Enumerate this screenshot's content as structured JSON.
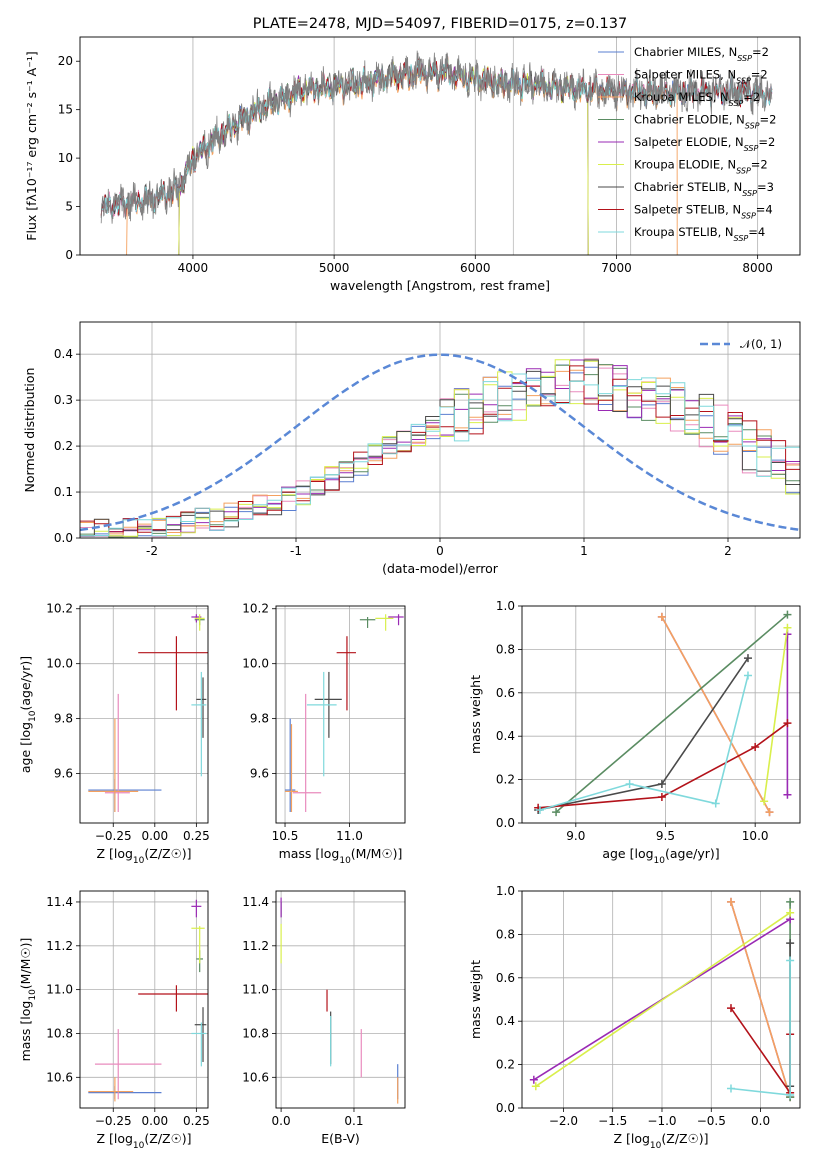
{
  "page_title": "PLATE=2478, MJD=54097, FIBERID=0175, z=0.137",
  "colors": {
    "c_miles": "#5a7fd1",
    "s_miles": "#e98bbd",
    "k_miles": "#f4a15f",
    "c_elodie": "#5a8c62",
    "s_elodie": "#9a2ab4",
    "k_elodie": "#d9ef4c",
    "c_stelib": "#4a4a4a",
    "s_stelib": "#b3121a",
    "k_stelib": "#7fd9dc"
  },
  "chart_data": [
    {
      "id": "spectrum",
      "type": "line",
      "title": "PLATE=2478, MJD=54097, FIBERID=0175, z=0.137",
      "xlabel": "wavelength [Angstrom, rest frame]",
      "ylabel": "Flux [fλ10⁻¹⁷ erg cm⁻² s⁻¹ A⁻¹]",
      "xlim": [
        3200,
        8300
      ],
      "ylim": [
        0,
        22.5
      ],
      "xticks": [
        4000,
        5000,
        6000,
        7000,
        8000
      ],
      "yticks": [
        0,
        5,
        10,
        15,
        20
      ],
      "grid": "x",
      "legend": "top-right",
      "observed_color": "#808080",
      "series": [
        {
          "key": "c_miles",
          "name": "Chabrier MILES, N",
          "sub": "SSP",
          "tail": "=2"
        },
        {
          "key": "s_miles",
          "name": "Salpeter MILES, N",
          "sub": "SSP",
          "tail": "=2"
        },
        {
          "key": "k_miles",
          "name": "Kroupa MILES, N",
          "sub": "SSP",
          "tail": "=2"
        },
        {
          "key": "c_elodie",
          "name": "Chabrier ELODIE, N",
          "sub": "SSP",
          "tail": "=2"
        },
        {
          "key": "s_elodie",
          "name": "Salpeter ELODIE, N",
          "sub": "SSP",
          "tail": "=2"
        },
        {
          "key": "k_elodie",
          "name": "Kroupa ELODIE, N",
          "sub": "SSP",
          "tail": "=2"
        },
        {
          "key": "c_stelib",
          "name": "Chabrier STELIB, N",
          "sub": "SSP",
          "tail": "=3"
        },
        {
          "key": "s_stelib",
          "name": "Salpeter STELIB, N",
          "sub": "SSP",
          "tail": "=4"
        },
        {
          "key": "k_stelib",
          "name": "Kroupa STELIB, N",
          "sub": "SSP",
          "tail": "=4"
        }
      ],
      "continuum": {
        "x": [
          3350,
          3500,
          3700,
          3900,
          4000,
          4200,
          4400,
          4600,
          4800,
          5000,
          5200,
          5400,
          5600,
          5800,
          6000,
          6200,
          6400,
          6600,
          6800,
          7000,
          7200,
          7400,
          7600,
          7800,
          8000,
          8100
        ],
        "y": [
          5.0,
          5.3,
          5.8,
          6.8,
          10.0,
          12.5,
          14.5,
          16.0,
          17.2,
          17.3,
          17.8,
          18.4,
          18.9,
          18.8,
          18.2,
          17.8,
          17.7,
          17.3,
          17.0,
          16.9,
          16.9,
          16.8,
          16.9,
          16.9,
          16.8,
          16.5
        ]
      },
      "models_range": [
        3350,
        8100
      ],
      "miles_orange_range": [
        3530,
        7430
      ],
      "elodie_range": [
        3900,
        6800
      ],
      "stelib_range": [
        3350,
        8100
      ]
    },
    {
      "id": "residual-histogram",
      "type": "histogram",
      "xlabel": "(data-model)/error",
      "ylabel": "Normed distribution",
      "xlim": [
        -2.5,
        2.5
      ],
      "ylim": [
        0,
        0.47
      ],
      "xticks": [
        -2,
        -1,
        0,
        1,
        2
      ],
      "yticks": [
        0.0,
        0.1,
        0.2,
        0.3,
        0.4
      ],
      "grid": "both",
      "legend": "top-right",
      "reference_label": "𝒩(0, 1)",
      "reference_color": "#5a88d6",
      "bin_width": 0.1,
      "hist_edges": [
        -2.5,
        2.5
      ],
      "hist_profile": {
        "x": [
          -2.5,
          -2.0,
          -1.5,
          -1.0,
          -0.5,
          0.0,
          0.5,
          1.0,
          1.5,
          2.0,
          2.5
        ],
        "y": [
          0.01,
          0.025,
          0.045,
          0.09,
          0.17,
          0.25,
          0.31,
          0.34,
          0.31,
          0.23,
          0.13
        ]
      }
    },
    {
      "id": "age-vs-metallicity",
      "type": "scatter",
      "xlabel": "Z [log10(Z/Z☉)]",
      "ylabel": "age [log10(age/yr)]",
      "xlim": [
        -0.45,
        0.32
      ],
      "ylim": [
        9.42,
        10.21
      ],
      "xticks": [
        -0.25,
        0.0,
        0.25
      ],
      "xticklabels": [
        "−0.25",
        "0.00",
        "0.25"
      ],
      "yticks": [
        9.6,
        9.8,
        10.0,
        10.2
      ],
      "grid": "both",
      "crosses": [
        {
          "key": "c_miles",
          "x": -0.24,
          "y": 9.54,
          "xe": [
            -0.4,
            0.04
          ],
          "ye": [
            9.46,
            9.58
          ]
        },
        {
          "key": "s_miles",
          "x": -0.22,
          "y": 9.53,
          "xe": [
            -0.3,
            -0.15
          ],
          "ye": [
            9.46,
            9.89
          ]
        },
        {
          "key": "k_miles",
          "x": -0.24,
          "y": 9.535,
          "xe": [
            -0.4,
            -0.1
          ],
          "ye": [
            9.46,
            9.8
          ]
        },
        {
          "key": "c_elodie",
          "x": 0.27,
          "y": 10.16,
          "xe": [
            0.24,
            0.3
          ],
          "ye": [
            10.14,
            10.17
          ]
        },
        {
          "key": "s_elodie",
          "x": 0.25,
          "y": 10.17,
          "xe": [
            0.22,
            0.28
          ],
          "ye": [
            10.15,
            10.18
          ]
        },
        {
          "key": "k_elodie",
          "x": 0.27,
          "y": 10.165,
          "xe": [
            0.24,
            0.3
          ],
          "ye": [
            10.12,
            10.18
          ]
        },
        {
          "key": "c_stelib",
          "x": 0.29,
          "y": 9.87,
          "xe": [
            0.25,
            0.31
          ],
          "ye": [
            9.73,
            9.95
          ]
        },
        {
          "key": "s_stelib",
          "x": 0.13,
          "y": 10.04,
          "xe": [
            -0.1,
            0.33
          ],
          "ye": [
            9.83,
            10.1
          ]
        },
        {
          "key": "k_stelib",
          "x": 0.28,
          "y": 9.85,
          "xe": [
            0.22,
            0.31
          ],
          "ye": [
            9.59,
            9.97
          ]
        }
      ]
    },
    {
      "id": "age-vs-mass",
      "type": "scatter",
      "xlabel": "mass [log10(M/M☉)]",
      "ylabel": "",
      "xlim": [
        10.43,
        11.43
      ],
      "ylim": [
        9.42,
        10.21
      ],
      "xticks": [
        10.5,
        11.0
      ],
      "xticklabels": [
        "10.5",
        "11.0"
      ],
      "yticks": [
        9.6,
        9.8,
        10.0,
        10.2
      ],
      "grid": "both",
      "crosses": [
        {
          "key": "c_miles",
          "x": 10.54,
          "y": 9.54,
          "xe": [
            10.5,
            10.58
          ],
          "ye": [
            9.46,
            9.8
          ]
        },
        {
          "key": "s_miles",
          "x": 10.66,
          "y": 9.53,
          "xe": [
            10.56,
            10.78
          ],
          "ye": [
            9.46,
            9.89
          ]
        },
        {
          "key": "k_miles",
          "x": 10.55,
          "y": 9.535,
          "xe": [
            10.5,
            10.6
          ],
          "ye": [
            9.46,
            9.78
          ]
        },
        {
          "key": "c_elodie",
          "x": 11.14,
          "y": 10.16,
          "xe": [
            11.08,
            11.2
          ],
          "ye": [
            10.13,
            10.17
          ]
        },
        {
          "key": "s_elodie",
          "x": 11.38,
          "y": 10.17,
          "xe": [
            11.3,
            11.42
          ],
          "ye": [
            10.14,
            10.18
          ]
        },
        {
          "key": "k_elodie",
          "x": 11.28,
          "y": 10.165,
          "xe": [
            11.2,
            11.34
          ],
          "ye": [
            10.12,
            10.18
          ]
        },
        {
          "key": "c_stelib",
          "x": 10.84,
          "y": 9.87,
          "xe": [
            10.73,
            10.94
          ],
          "ye": [
            9.73,
            9.97
          ]
        },
        {
          "key": "s_stelib",
          "x": 10.98,
          "y": 10.04,
          "xe": [
            10.9,
            11.05
          ],
          "ye": [
            9.83,
            10.1
          ]
        },
        {
          "key": "k_stelib",
          "x": 10.8,
          "y": 9.85,
          "xe": [
            10.67,
            10.9
          ],
          "ye": [
            9.59,
            9.97
          ]
        }
      ]
    },
    {
      "id": "weight-vs-age",
      "type": "line",
      "xlabel": "age [log10(age/yr)]",
      "ylabel": "mass weight",
      "xlim": [
        8.7,
        10.25
      ],
      "ylim": [
        0,
        1
      ],
      "xticks": [
        9.0,
        9.5,
        10.0
      ],
      "xticklabels": [
        "9.0",
        "9.5",
        "10.0"
      ],
      "yticks": [
        0.0,
        0.2,
        0.4,
        0.6,
        0.8,
        1.0
      ],
      "grid": "both",
      "series": [
        {
          "key": "c_miles",
          "x": [
            9.48,
            10.08
          ],
          "y": [
            0.95,
            0.05
          ]
        },
        {
          "key": "s_miles",
          "x": [
            9.48,
            10.08
          ],
          "y": [
            0.95,
            0.05
          ]
        },
        {
          "key": "k_miles",
          "x": [
            9.48,
            10.08
          ],
          "y": [
            0.95,
            0.05
          ]
        },
        {
          "key": "c_elodie",
          "x": [
            8.89,
            10.18
          ],
          "y": [
            0.05,
            0.96
          ]
        },
        {
          "key": "s_elodie",
          "x": [
            10.18,
            10.18
          ],
          "y": [
            0.13,
            0.87
          ]
        },
        {
          "key": "k_elodie",
          "x": [
            10.05,
            10.18
          ],
          "y": [
            0.1,
            0.9
          ]
        },
        {
          "key": "c_stelib",
          "x": [
            8.79,
            9.48,
            9.96
          ],
          "y": [
            0.06,
            0.18,
            0.76
          ]
        },
        {
          "key": "s_stelib",
          "x": [
            8.79,
            9.48,
            10.0,
            10.18
          ],
          "y": [
            0.07,
            0.12,
            0.35,
            0.46
          ]
        },
        {
          "key": "k_stelib",
          "x": [
            8.8,
            9.3,
            9.78,
            9.96
          ],
          "y": [
            0.06,
            0.18,
            0.09,
            0.68
          ]
        }
      ]
    },
    {
      "id": "mass-vs-metallicity",
      "type": "scatter",
      "xlabel": "Z [log10(Z/Z☉)]",
      "ylabel": "mass [log10(M/M☉)]",
      "xlim": [
        -0.45,
        0.32
      ],
      "ylim": [
        10.46,
        11.45
      ],
      "xticks": [
        -0.25,
        0.0,
        0.25
      ],
      "xticklabels": [
        "−0.25",
        "0.00",
        "0.25"
      ],
      "yticks": [
        10.6,
        10.8,
        11.0,
        11.2,
        11.4
      ],
      "grid": "both",
      "crosses": [
        {
          "key": "c_miles",
          "x": -0.24,
          "y": 10.53,
          "xe": [
            -0.4,
            0.04
          ],
          "ye": [
            10.5,
            10.56
          ]
        },
        {
          "key": "s_miles",
          "x": -0.22,
          "y": 10.66,
          "xe": [
            -0.36,
            0.04
          ],
          "ye": [
            10.5,
            10.82
          ]
        },
        {
          "key": "k_miles",
          "x": -0.24,
          "y": 10.535,
          "xe": [
            -0.4,
            -0.13
          ],
          "ye": [
            10.49,
            10.6
          ]
        },
        {
          "key": "c_elodie",
          "x": 0.27,
          "y": 11.14,
          "xe": [
            0.25,
            0.29
          ],
          "ye": [
            11.08,
            11.18
          ]
        },
        {
          "key": "s_elodie",
          "x": 0.25,
          "y": 11.38,
          "xe": [
            0.22,
            0.28
          ],
          "ye": [
            11.33,
            11.41
          ]
        },
        {
          "key": "k_elodie",
          "x": 0.27,
          "y": 11.28,
          "xe": [
            0.22,
            0.3
          ],
          "ye": [
            11.12,
            11.29
          ]
        },
        {
          "key": "c_stelib",
          "x": 0.29,
          "y": 10.84,
          "xe": [
            0.24,
            0.31
          ],
          "ye": [
            10.67,
            10.92
          ]
        },
        {
          "key": "s_stelib",
          "x": 0.13,
          "y": 10.98,
          "xe": [
            -0.1,
            0.33
          ],
          "ye": [
            10.9,
            11.02
          ]
        },
        {
          "key": "k_stelib",
          "x": 0.28,
          "y": 10.8,
          "xe": [
            0.22,
            0.31
          ],
          "ye": [
            10.65,
            10.85
          ]
        }
      ]
    },
    {
      "id": "mass-vs-ebv",
      "type": "scatter",
      "xlabel": "E(B-V)",
      "ylabel": "",
      "xlim": [
        -0.007,
        0.17
      ],
      "ylim": [
        10.46,
        11.45
      ],
      "xticks": [
        0.0,
        0.1
      ],
      "xticklabels": [
        "0.0",
        "0.1"
      ],
      "yticks": [
        10.6,
        10.8,
        11.0,
        11.2,
        11.4
      ],
      "grid": "both",
      "crosses": [
        {
          "key": "c_miles",
          "x": 0.16,
          "y": 10.53,
          "xe": [
            0.16,
            0.16
          ],
          "ye": [
            10.5,
            10.66
          ]
        },
        {
          "key": "s_miles",
          "x": 0.11,
          "y": 10.66,
          "xe": [
            0.11,
            0.11
          ],
          "ye": [
            10.6,
            10.82
          ]
        },
        {
          "key": "k_miles",
          "x": 0.16,
          "y": 10.53,
          "xe": [
            0.16,
            0.16
          ],
          "ye": [
            10.48,
            10.6
          ]
        },
        {
          "key": "c_elodie",
          "x": 0.0,
          "y": 11.38,
          "xe": [
            0.0,
            0.0
          ],
          "ye": [
            11.33,
            11.4
          ]
        },
        {
          "key": "s_elodie",
          "x": 0.0,
          "y": 11.38,
          "xe": [
            0.0,
            0.0
          ],
          "ye": [
            11.33,
            11.42
          ]
        },
        {
          "key": "k_elodie",
          "x": 0.0,
          "y": 11.22,
          "xe": [
            0.0,
            0.0
          ],
          "ye": [
            11.12,
            11.3
          ]
        },
        {
          "key": "c_stelib",
          "x": 0.068,
          "y": 10.8,
          "xe": [
            0.068,
            0.068
          ],
          "ye": [
            10.66,
            10.9
          ]
        },
        {
          "key": "s_stelib",
          "x": 0.063,
          "y": 10.98,
          "xe": [
            0.063,
            0.063
          ],
          "ye": [
            10.9,
            11.0
          ]
        },
        {
          "key": "k_stelib",
          "x": 0.068,
          "y": 10.78,
          "xe": [
            0.068,
            0.068
          ],
          "ye": [
            10.65,
            10.88
          ]
        }
      ]
    },
    {
      "id": "weight-vs-metallicity",
      "type": "line",
      "xlabel": "Z [log10(Z/Z☉)]",
      "ylabel": "mass weight",
      "xlim": [
        -2.42,
        0.4
      ],
      "ylim": [
        0,
        1
      ],
      "xticks": [
        -2.0,
        -1.5,
        -1.0,
        -0.5,
        0.0
      ],
      "xticklabels": [
        "−2.0",
        "−1.5",
        "−1.0",
        "−0.5",
        "0.0"
      ],
      "yticks": [
        0.0,
        0.2,
        0.4,
        0.6,
        0.8,
        1.0
      ],
      "grid": "both",
      "series": [
        {
          "key": "c_miles",
          "x": [
            -0.3,
            0.3
          ],
          "y": [
            0.95,
            0.05
          ]
        },
        {
          "key": "s_miles",
          "x": [
            -0.3,
            0.3
          ],
          "y": [
            0.95,
            0.05
          ]
        },
        {
          "key": "k_miles",
          "x": [
            -0.3,
            0.3
          ],
          "y": [
            0.95,
            0.05
          ]
        },
        {
          "key": "c_elodie",
          "x": [
            0.3,
            0.3
          ],
          "y": [
            0.05,
            0.95
          ]
        },
        {
          "key": "s_elodie",
          "x": [
            -2.3,
            0.3
          ],
          "y": [
            0.13,
            0.87
          ]
        },
        {
          "key": "k_elodie",
          "x": [
            -2.28,
            0.3
          ],
          "y": [
            0.1,
            0.9
          ]
        },
        {
          "key": "c_stelib",
          "x": [
            0.3,
            0.3
          ],
          "y": [
            0.76,
            0.1
          ]
        },
        {
          "key": "s_stelib",
          "x": [
            -0.3,
            0.3,
            0.3
          ],
          "y": [
            0.46,
            0.07,
            0.34
          ]
        },
        {
          "key": "k_stelib",
          "x": [
            -0.3,
            0.3,
            0.3
          ],
          "y": [
            0.09,
            0.06,
            0.68
          ]
        }
      ]
    }
  ]
}
